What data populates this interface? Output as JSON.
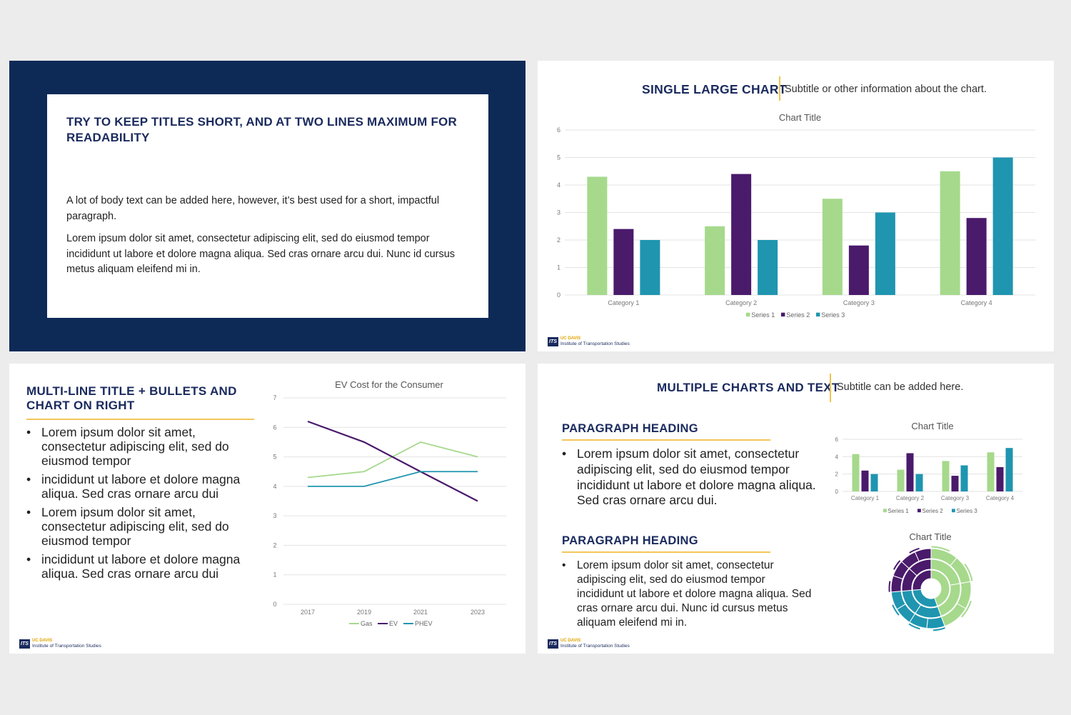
{
  "slide1": {
    "title": "TRY TO KEEP TITLES SHORT, AND AT TWO LINES MAXIMUM FOR READABILITY",
    "paragraph1": "A lot of body text can be added here, however, it’s best used for a short, impactful paragraph.",
    "paragraph2": "Lorem ipsum dolor sit amet, consectetur adipiscing elit, sed do eiusmod tempor incididunt ut labore et dolore magna aliqua. Sed cras ornare arcu dui. Nunc id cursus metus aliquam eleifend mi in."
  },
  "slide2": {
    "title": "SINGLE LARGE CHART",
    "subtitle": "Subtitle or other information about the chart."
  },
  "slide3": {
    "title_line1": "MULTI-LINE TITLE + BULLETS AND",
    "title_line2": "CHART ON RIGHT",
    "bullets": [
      "Lorem ipsum dolor sit amet, consectetur adipiscing elit, sed do eiusmod tempor",
      "incididunt ut labore et dolore magna aliqua. Sed cras ornare arcu dui",
      "Lorem ipsum dolor sit amet, consectetur adipiscing elit, sed do eiusmod tempor",
      "incididunt ut labore et dolore magna aliqua. Sed cras ornare arcu dui"
    ]
  },
  "slide4": {
    "title": "MULTIPLE CHARTS AND TEXT",
    "subtitle": "Subtitle can be added here.",
    "heading1": "PARAGRAPH HEADING",
    "bullet1": "Lorem ipsum dolor sit amet, consectetur adipiscing elit, sed do eiusmod tempor incididunt ut labore et dolore magna aliqua. Sed cras ornare arcu dui.",
    "heading2": "PARAGRAPH HEADING",
    "bullet2": "Lorem ipsum dolor sit amet, consectetur adipiscing elit, sed do eiusmod tempor incididunt ut labore et dolore magna aliqua. Sed cras ornare arcu dui. Nunc id cursus metus aliquam eleifend mi in.",
    "sunburst_title": "Chart Title"
  },
  "logo": {
    "uc": "UC DAVIS",
    "its_mark": "ITS",
    "its": "Institute of Transportation Studies"
  },
  "colors": {
    "navy": "#0d2a57",
    "series1": "#a6d98c",
    "series2": "#4a1a6b",
    "series3": "#1f95b0",
    "accent": "#f0c34a"
  },
  "chart_data": [
    {
      "type": "bar",
      "title": "Chart Title",
      "categories": [
        "Category 1",
        "Category 2",
        "Category 3",
        "Category 4"
      ],
      "series": [
        {
          "name": "Series 1",
          "values": [
            4.3,
            2.5,
            3.5,
            4.5
          ]
        },
        {
          "name": "Series 2",
          "values": [
            2.4,
            4.4,
            1.8,
            2.8
          ]
        },
        {
          "name": "Series 3",
          "values": [
            2,
            2,
            3,
            5
          ]
        }
      ],
      "ylim": [
        0,
        6
      ],
      "yticks": [
        "0",
        "1",
        "2",
        "3",
        "4",
        "5",
        "6"
      ],
      "legend": "bottom"
    },
    {
      "type": "line",
      "title": "EV Cost for the Consumer",
      "x": [
        "2017",
        "2019",
        "2021",
        "2023"
      ],
      "series": [
        {
          "name": "Gas",
          "values": [
            4.3,
            4.5,
            5.5,
            5
          ]
        },
        {
          "name": "EV",
          "values": [
            6.2,
            5.5,
            4.5,
            3.5
          ]
        },
        {
          "name": "PHEV",
          "values": [
            4,
            4,
            4.5,
            4.5
          ]
        }
      ],
      "ylim": [
        0,
        7
      ],
      "yticks": [
        "0",
        "1",
        "2",
        "3",
        "4",
        "5",
        "6",
        "7"
      ],
      "legend": "bottom"
    },
    {
      "type": "bar",
      "title": "Chart Title",
      "categories": [
        "Category 1",
        "Category 2",
        "Category 3",
        "Category 4"
      ],
      "series": [
        {
          "name": "Series 1",
          "values": [
            4.3,
            2.5,
            3.5,
            4.5
          ]
        },
        {
          "name": "Series 2",
          "values": [
            2.4,
            4.4,
            1.8,
            2.8
          ]
        },
        {
          "name": "Series 3",
          "values": [
            2,
            2,
            3,
            5
          ]
        }
      ],
      "ylim": [
        0,
        6
      ],
      "yticks": [
        "0",
        "2",
        "4",
        "6"
      ],
      "legend": "bottom"
    }
  ]
}
